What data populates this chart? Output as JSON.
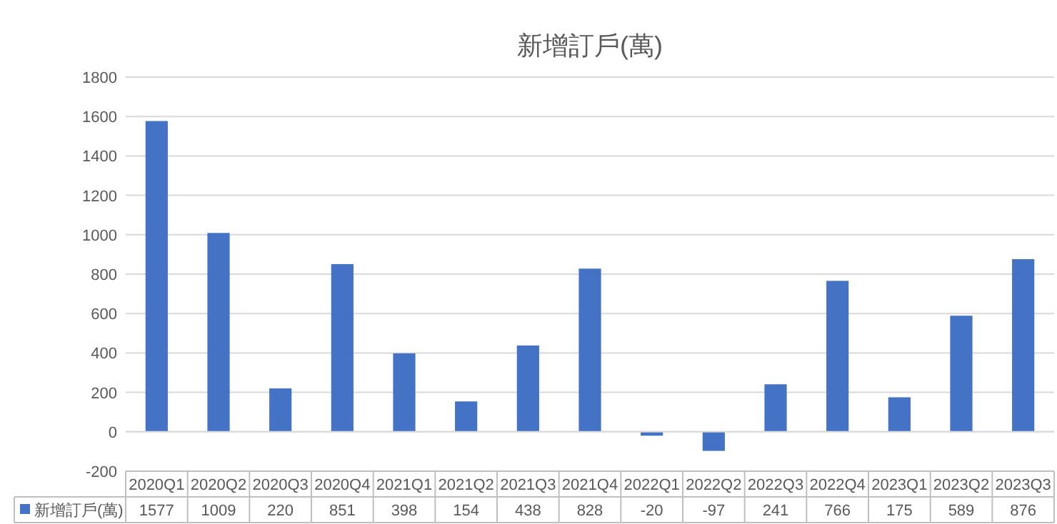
{
  "chart_data": {
    "type": "bar",
    "title": "新增訂戶(萬)",
    "categories": [
      "2020Q1",
      "2020Q2",
      "2020Q3",
      "2020Q4",
      "2021Q1",
      "2021Q2",
      "2021Q3",
      "2021Q4",
      "2022Q1",
      "2022Q2",
      "2022Q3",
      "2022Q4",
      "2023Q1",
      "2023Q2",
      "2023Q3"
    ],
    "series": [
      {
        "name": "新增訂戶(萬)",
        "color": "#4472c4",
        "values": [
          1577,
          1009,
          220,
          851,
          398,
          154,
          438,
          828,
          -20,
          -97,
          241,
          766,
          175,
          589,
          876
        ]
      }
    ],
    "ylim": [
      -200,
      1800
    ],
    "yticks": [
      -200,
      0,
      200,
      400,
      600,
      800,
      1000,
      1200,
      1400,
      1600,
      1800
    ],
    "grid": "y",
    "legend": "bottom",
    "data_labels": true
  }
}
